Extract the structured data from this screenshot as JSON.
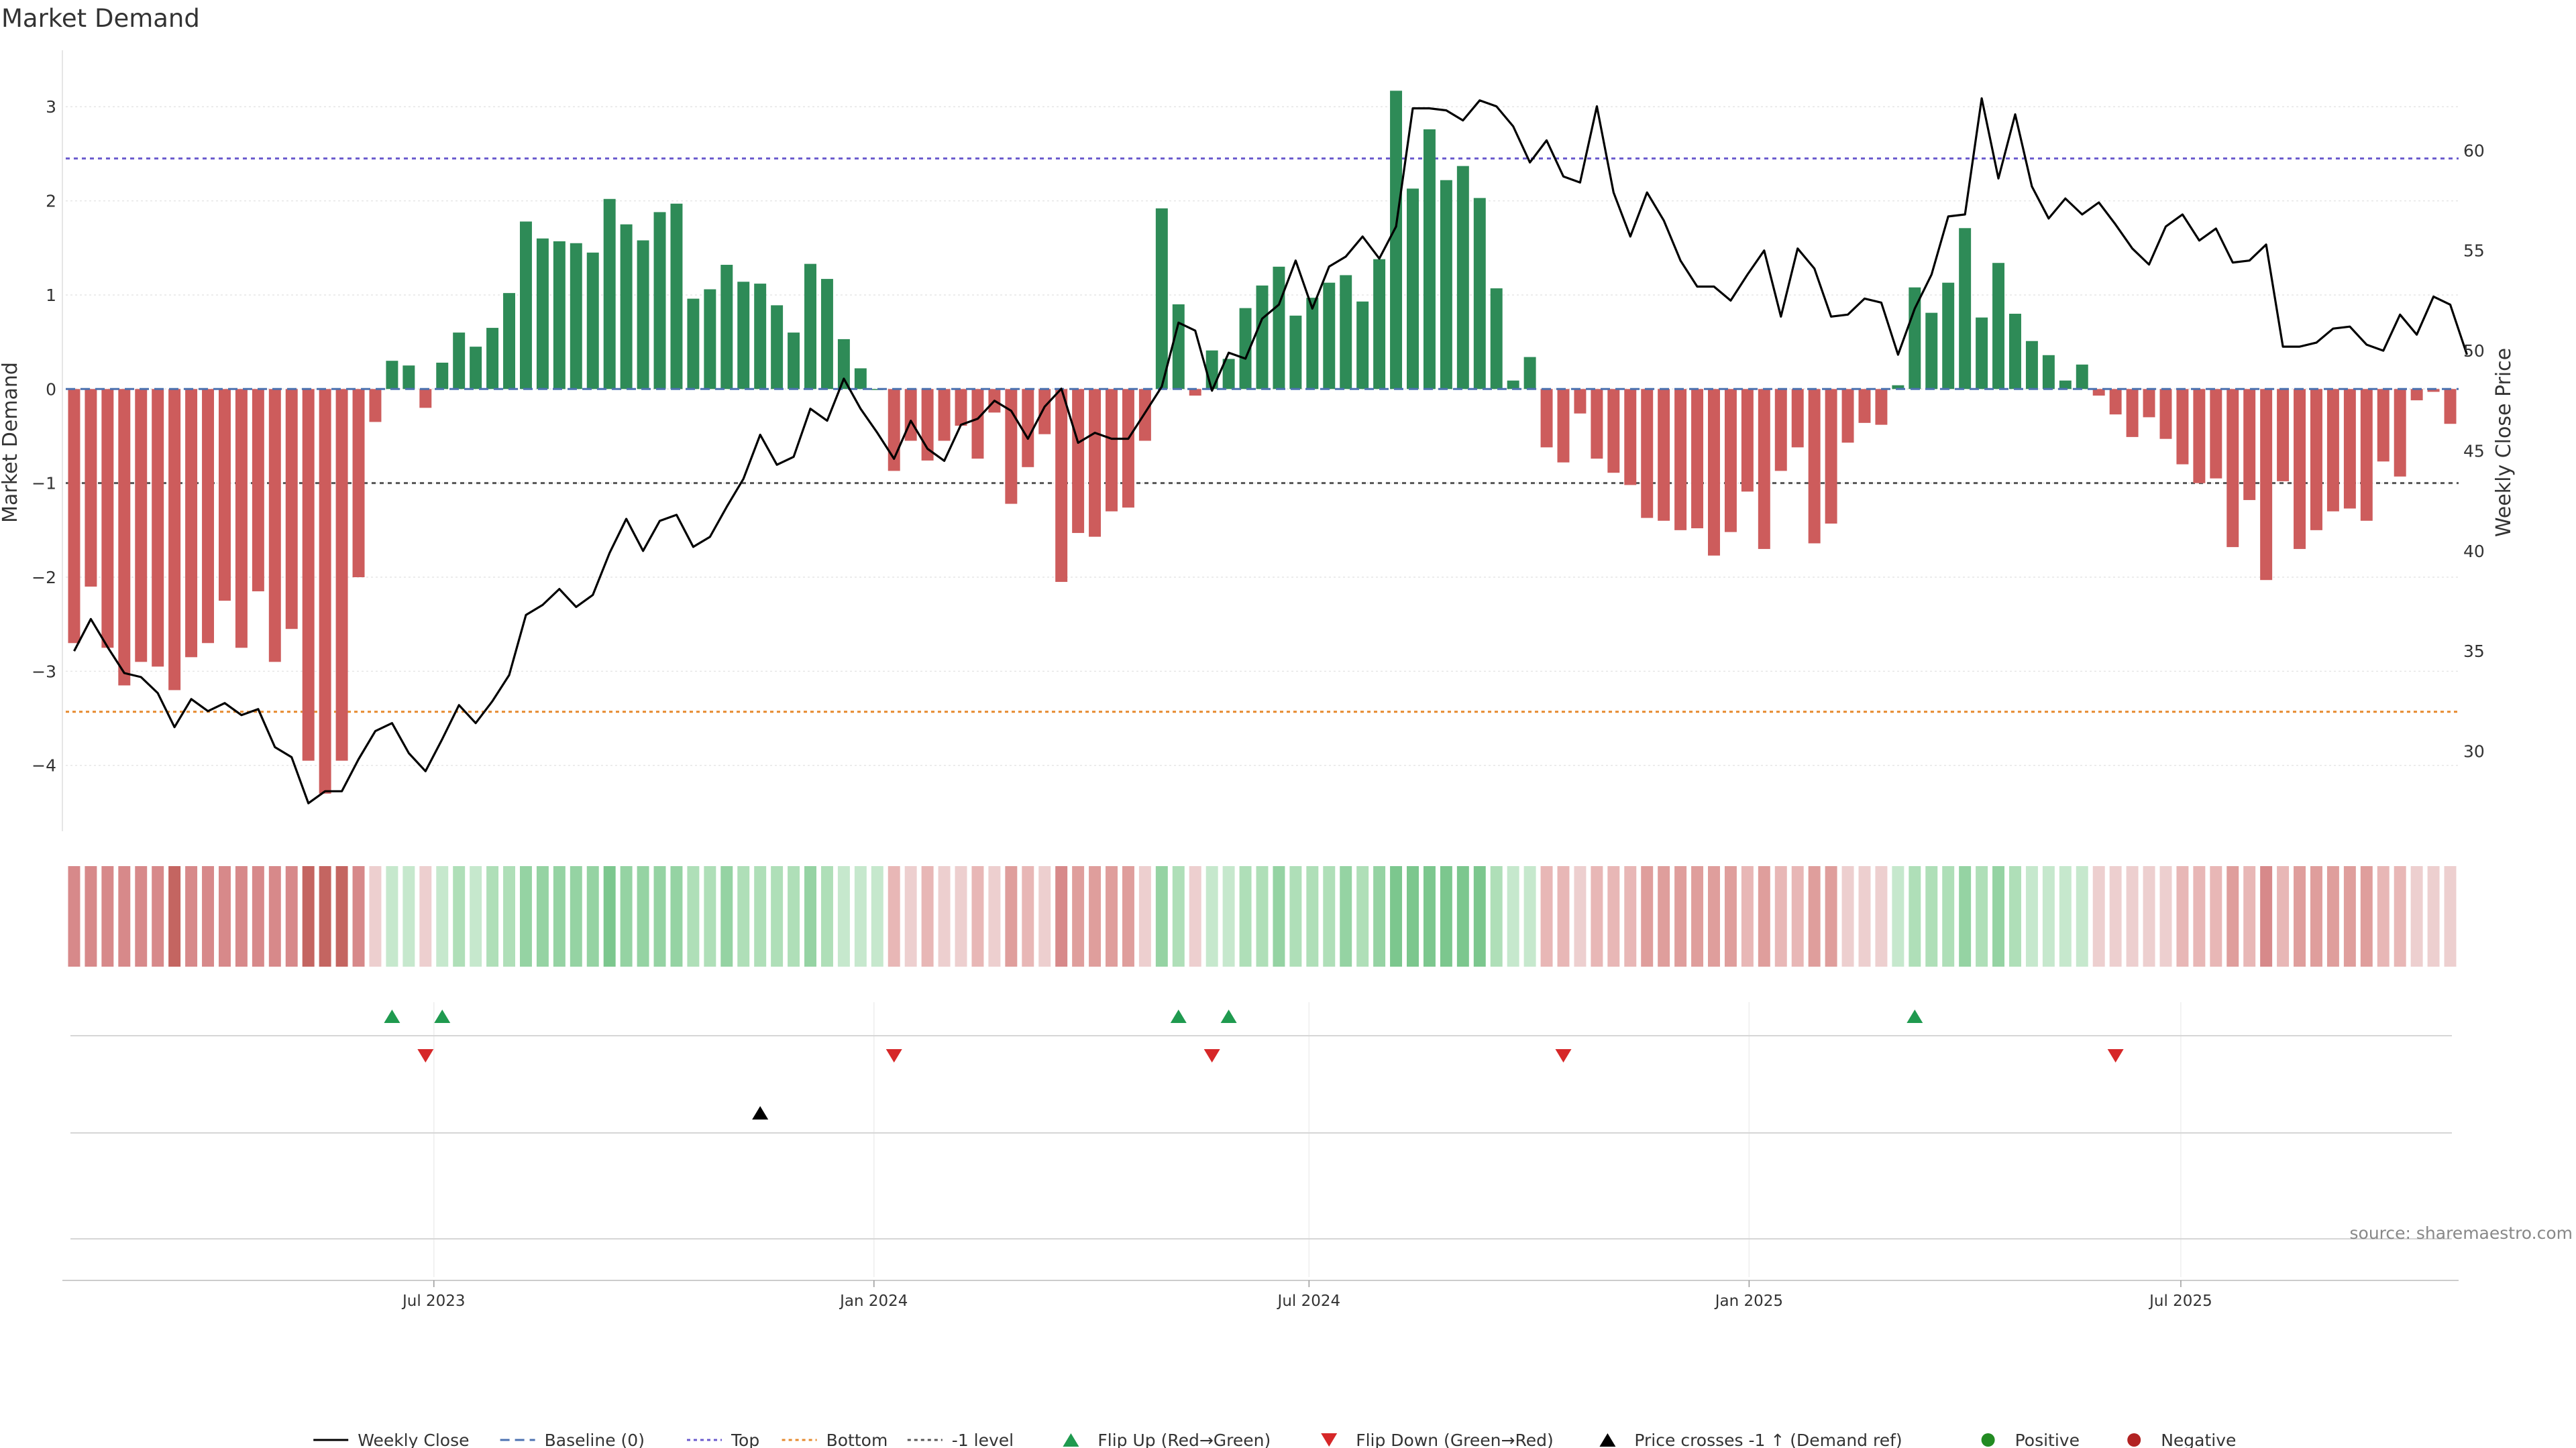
{
  "chart_data": {
    "type": "bar",
    "title": "Market Demand",
    "source": "source: sharemaestro.com",
    "y_left": {
      "label": "Market Demand",
      "ticks": [
        3,
        2,
        1,
        0,
        -1,
        -2,
        -3,
        -4
      ],
      "tick_labels": [
        "3",
        "2",
        "1",
        "0",
        "−1",
        "−2",
        "−3",
        "−4"
      ],
      "range": [
        -4.7,
        3.6
      ]
    },
    "y_right": {
      "label": "Weekly Close Price",
      "ticks": [
        30,
        35,
        40,
        45,
        50,
        55,
        60
      ],
      "tick_labels": [
        "30",
        "35",
        "40",
        "45",
        "50",
        "55",
        "60"
      ],
      "range": [
        26,
        65
      ]
    },
    "x_ticks": [
      {
        "label": "Jul 2023",
        "week": 21.5
      },
      {
        "label": "Jan 2024",
        "week": 47.8
      },
      {
        "label": "Jul 2024",
        "week": 73.8
      },
      {
        "label": "Jan 2025",
        "week": 100.1
      },
      {
        "label": "Jul 2025",
        "week": 125.9
      }
    ],
    "reference_lines": [
      {
        "name": "Top",
        "value": 2.45,
        "color": "#6a5acd",
        "dash": "6,6"
      },
      {
        "name": "Bottom",
        "value": -3.43,
        "color": "#e68a2e",
        "dash": "5,5"
      },
      {
        "name": "-1 level",
        "value": -1.0,
        "color": "#555555",
        "dash": "6,6"
      }
    ],
    "demand": [
      -2.7,
      -2.1,
      -2.75,
      -3.15,
      -2.9,
      -2.95,
      -3.2,
      -2.85,
      -2.7,
      -2.25,
      -2.75,
      -2.15,
      -2.9,
      -2.55,
      -3.95,
      -4.3,
      -3.95,
      -2.0,
      -0.35,
      0.3,
      0.25,
      -0.2,
      0.28,
      0.6,
      0.45,
      0.65,
      1.02,
      1.78,
      1.6,
      1.57,
      1.55,
      1.45,
      2.02,
      1.75,
      1.58,
      1.88,
      1.97,
      0.96,
      1.06,
      1.32,
      1.14,
      1.12,
      0.89,
      0.6,
      1.33,
      1.17,
      0.53,
      0.22,
      0.0,
      -0.87,
      -0.55,
      -0.76,
      -0.55,
      -0.39,
      -0.74,
      -0.25,
      -1.22,
      -0.83,
      -0.48,
      -2.05,
      -1.53,
      -1.57,
      -1.3,
      -1.26,
      -0.55,
      1.92,
      0.9,
      -0.07,
      0.41,
      0.32,
      0.86,
      1.1,
      1.3,
      0.78,
      0.97,
      1.13,
      1.21,
      0.93,
      1.38,
      3.17,
      2.13,
      2.76,
      2.22,
      2.37,
      2.03,
      1.07,
      0.09,
      0.34,
      -0.62,
      -0.78,
      -0.26,
      -0.74,
      -0.89,
      -1.02,
      -1.37,
      -1.4,
      -1.5,
      -1.48,
      -1.77,
      -1.52,
      -1.09,
      -1.7,
      -0.87,
      -0.62,
      -1.64,
      -1.43,
      -0.57,
      -0.36,
      -0.38,
      0.04,
      1.08,
      0.81,
      1.13,
      1.71,
      0.76,
      1.34,
      0.8,
      0.51,
      0.36,
      0.09,
      0.26,
      -0.07,
      -0.27,
      -0.51,
      -0.3,
      -0.53,
      -0.8,
      -1.0,
      -0.95,
      -1.68,
      -1.18,
      -2.03,
      -0.98,
      -1.7,
      -1.5,
      -1.3,
      -1.27,
      -1.4,
      -0.77,
      -0.93,
      -0.12,
      -0.03,
      -0.37
    ],
    "price": [
      35.0,
      36.6,
      35.2,
      33.9,
      33.7,
      32.9,
      31.2,
      32.6,
      32.0,
      32.4,
      31.8,
      32.1,
      30.2,
      29.7,
      27.4,
      28.0,
      28.0,
      29.6,
      31.0,
      31.4,
      29.9,
      29.0,
      30.6,
      32.3,
      31.4,
      32.5,
      33.8,
      36.8,
      37.3,
      38.1,
      37.2,
      37.8,
      39.9,
      41.6,
      40.0,
      41.5,
      41.8,
      40.2,
      40.7,
      42.2,
      43.6,
      45.8,
      44.3,
      44.7,
      47.1,
      46.5,
      48.6,
      47.1,
      45.9,
      44.6,
      46.5,
      45.1,
      44.5,
      46.3,
      46.6,
      47.5,
      47.0,
      45.6,
      47.2,
      48.1,
      45.4,
      45.9,
      45.6,
      45.6,
      46.9,
      48.2,
      51.4,
      51.0,
      48.0,
      49.9,
      49.6,
      51.6,
      52.3,
      54.5,
      52.1,
      54.2,
      54.7,
      55.7,
      54.6,
      56.2,
      62.1,
      62.1,
      62.0,
      61.5,
      62.5,
      62.2,
      61.2,
      59.4,
      60.5,
      58.7,
      58.4,
      62.2,
      57.9,
      55.7,
      57.9,
      56.5,
      54.5,
      53.2,
      53.2,
      52.5,
      53.8,
      55.0,
      51.7,
      55.1,
      54.1,
      51.7,
      51.8,
      52.6,
      52.4,
      49.8,
      52.1,
      53.8,
      56.7,
      56.8,
      62.6,
      58.6,
      61.8,
      58.2,
      56.6,
      57.6,
      56.8,
      57.4,
      56.3,
      55.1,
      54.3,
      56.2,
      56.8,
      55.5,
      56.1,
      54.4,
      54.5,
      55.3,
      50.2,
      50.2,
      50.4,
      51.1,
      51.2,
      50.3,
      50.0,
      51.8,
      50.8,
      52.7,
      52.3,
      49.8
    ],
    "heat_colors": {
      "red_levels": [
        "#edcfcf",
        "#e8b7b6",
        "#df9e9c",
        "#d7898a",
        "#c46561"
      ],
      "green_levels": [
        "#c6e8cd",
        "#afdfb8",
        "#95d3a3",
        "#7cc78e",
        "#5fb878"
      ]
    },
    "flip_up_weeks": [
      19,
      22,
      66,
      69,
      110
    ],
    "flip_down_weeks": [
      21,
      49,
      68,
      89,
      122
    ],
    "price_cross_weeks": [
      41
    ],
    "colors": {
      "positive_bar": "#2e8b57",
      "negative_bar": "#cd5c5c",
      "price_line": "#000000",
      "baseline": "#4c72b0",
      "flip_up": "#1f9a4f",
      "flip_down": "#d62728",
      "cross": "#000000",
      "positive_dot": "#228b22",
      "negative_dot": "#b22222"
    },
    "legend": [
      {
        "label": "Weekly Close",
        "kind": "line",
        "color": "#000000",
        "dash": ""
      },
      {
        "label": "Baseline (0)",
        "kind": "line",
        "color": "#4c72b0",
        "dash": "14,8"
      },
      {
        "label": "Top",
        "kind": "line",
        "color": "#6a5acd",
        "dash": "5,5"
      },
      {
        "label": "Bottom",
        "kind": "line",
        "color": "#e68a2e",
        "dash": "5,5"
      },
      {
        "label": "-1 level",
        "kind": "line",
        "color": "#555555",
        "dash": "5,5"
      },
      {
        "label": "Flip Up (Red→Green)",
        "kind": "tri-up",
        "color": "#1f9a4f"
      },
      {
        "label": "Flip Down (Green→Red)",
        "kind": "tri-down",
        "color": "#d62728"
      },
      {
        "label": "Price crosses -1 ↑ (Demand ref)",
        "kind": "tri-up",
        "color": "#000000"
      },
      {
        "label": "Positive",
        "kind": "dot",
        "color": "#228b22"
      },
      {
        "label": "Negative",
        "kind": "dot",
        "color": "#b22222"
      }
    ],
    "legend_position": "bottom-center",
    "grid": true
  }
}
